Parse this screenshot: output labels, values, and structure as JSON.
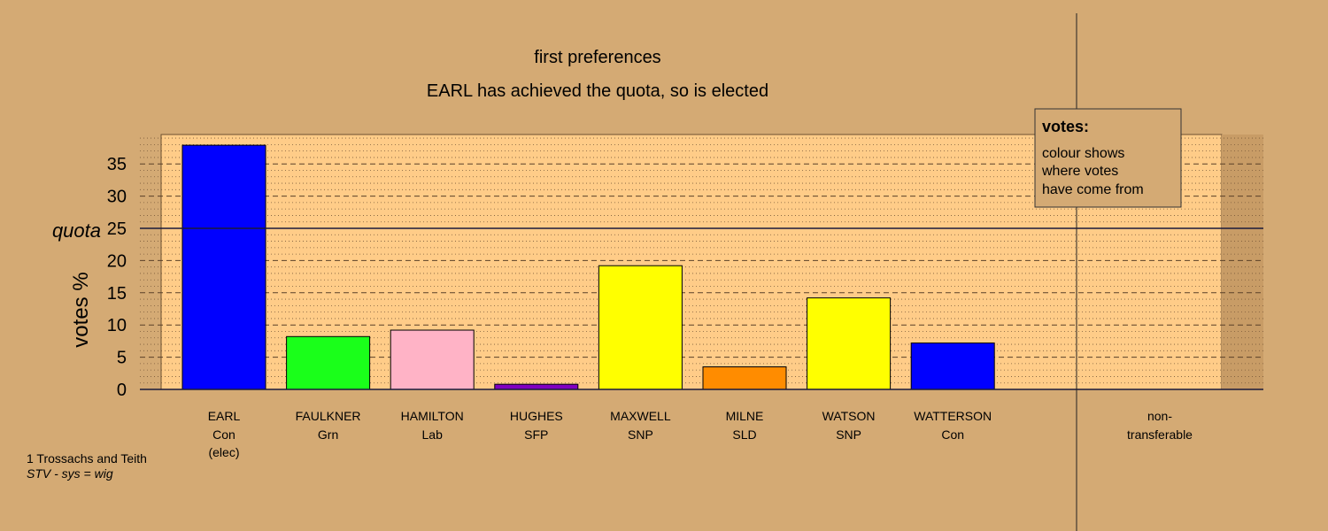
{
  "chart_data": {
    "type": "bar",
    "title": "first preferences",
    "subtitle": "EARL has achieved the quota, so is elected",
    "ylabel": "votes %",
    "ylim": [
      0,
      40
    ],
    "yticks": [
      0,
      5,
      10,
      15,
      20,
      25,
      30,
      35
    ],
    "quota": 25,
    "quota_label": "quota",
    "categories": [
      {
        "name": "EARL",
        "party": "Con",
        "note": "(elec)",
        "value": 37.9,
        "color": "#0000ff"
      },
      {
        "name": "FAULKNER",
        "party": "Grn",
        "note": "",
        "value": 8.2,
        "color": "#1aff1a"
      },
      {
        "name": "HAMILTON",
        "party": "Lab",
        "note": "",
        "value": 9.2,
        "color": "#ffb3c6"
      },
      {
        "name": "HUGHES",
        "party": "SFP",
        "note": "",
        "value": 0.8,
        "color": "#8000c0"
      },
      {
        "name": "MAXWELL",
        "party": "SNP",
        "note": "",
        "value": 19.2,
        "color": "#ffff00"
      },
      {
        "name": "MILNE",
        "party": "SLD",
        "note": "",
        "value": 3.5,
        "color": "#ff8c00"
      },
      {
        "name": "WATSON",
        "party": "SNP",
        "note": "",
        "value": 14.2,
        "color": "#ffff00"
      },
      {
        "name": "WATTERSON",
        "party": "Con",
        "note": "",
        "value": 7.2,
        "color": "#0000ff"
      }
    ],
    "nontransferable": {
      "label1": "non-",
      "label2": "transferable",
      "value": 0
    },
    "legend": {
      "title": "votes:",
      "lines": [
        "colour shows",
        "where votes",
        "have come from"
      ],
      "placement": "top-right"
    },
    "grid": true
  },
  "footer": {
    "line1": "1 Trossachs and Teith",
    "line2": "STV - sys = wig"
  },
  "colors": {
    "background": "#d4aa74",
    "plot_background": "#ffcc88"
  }
}
